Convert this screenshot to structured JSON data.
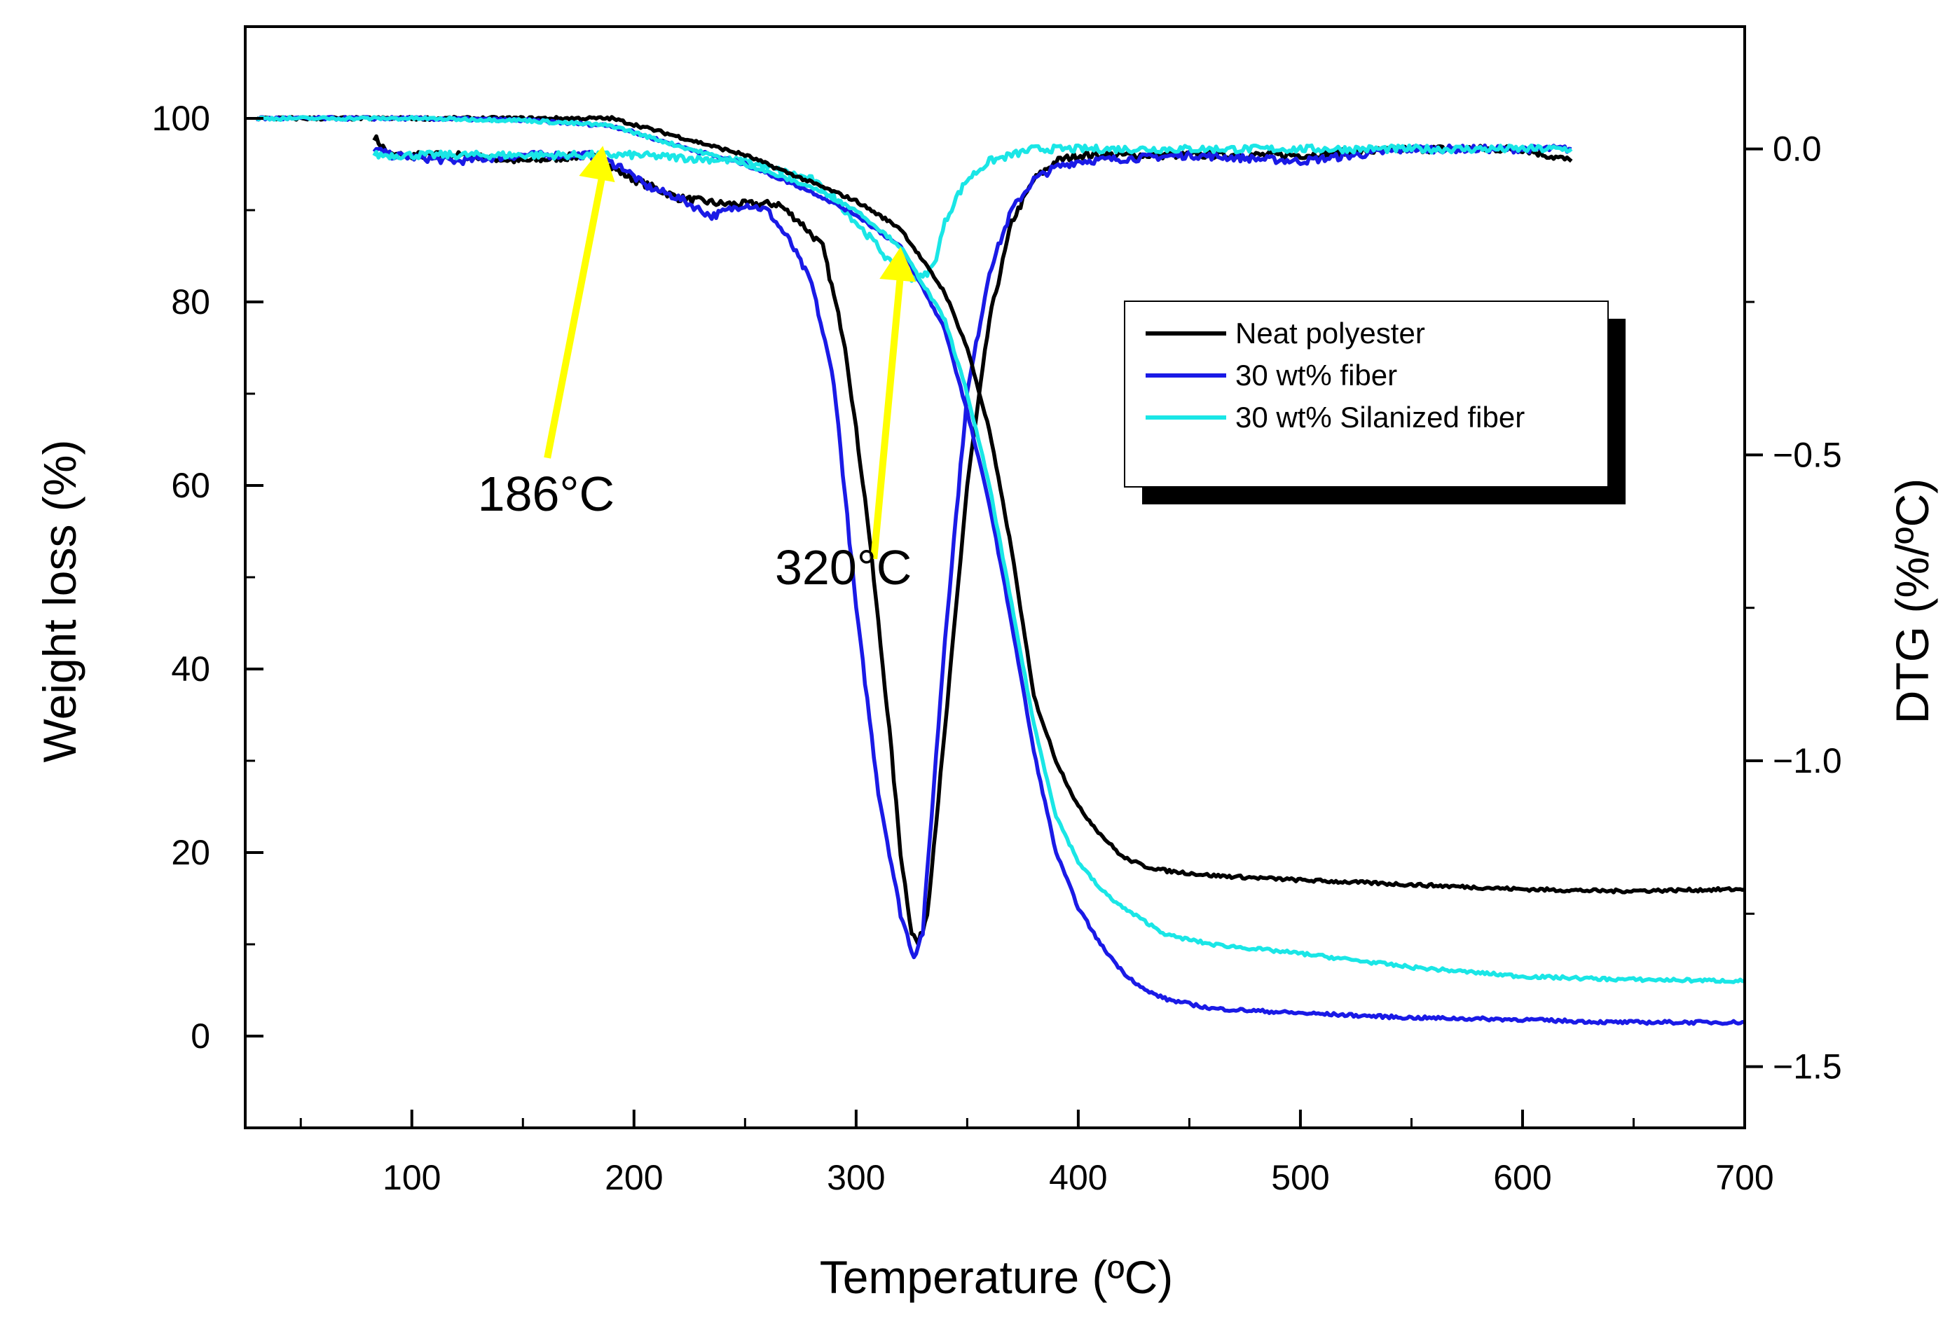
{
  "chart_data": {
    "type": "line",
    "title": "",
    "xlabel": "Temperature (ºC)",
    "ylabel": "Weight loss (%)",
    "y2label": "DTG (%/ºC)",
    "xlim": [
      25,
      700
    ],
    "ylim": [
      -10,
      110
    ],
    "y2lim": [
      -1.6,
      0.2
    ],
    "x_ticks": [
      100,
      200,
      300,
      400,
      500,
      600,
      700
    ],
    "x_tick_labels": [
      "100",
      "200",
      "300",
      "400",
      "500",
      "600",
      "700"
    ],
    "y_ticks": [
      0,
      20,
      40,
      60,
      80,
      100
    ],
    "y_tick_labels": [
      "0",
      "20",
      "40",
      "60",
      "80",
      "100"
    ],
    "y2_ticks": [
      0.0,
      -0.5,
      -1.0,
      -1.5
    ],
    "y2_tick_labels": [
      "0.0",
      "−0.5",
      "−1.0",
      "−1.5"
    ],
    "legend_position": "top-right",
    "tg_series": [
      {
        "name": "Neat polyester",
        "color": "#000000",
        "x": [
          30,
          100,
          150,
          190,
          220,
          250,
          280,
          300,
          320,
          340,
          350,
          360,
          370,
          380,
          390,
          400,
          410,
          420,
          430,
          440,
          460,
          500,
          550,
          600,
          640,
          700
        ],
        "y": [
          100,
          100,
          100,
          100,
          98,
          96,
          93,
          91,
          88,
          81,
          75,
          66,
          53,
          37,
          30,
          25,
          22,
          19.5,
          18.5,
          18,
          17.5,
          17,
          16.5,
          16,
          15.8,
          16
        ]
      },
      {
        "name": "30 wt% fiber",
        "color": "#1a1ae6",
        "x": [
          30,
          100,
          150,
          190,
          220,
          250,
          280,
          300,
          320,
          340,
          350,
          360,
          370,
          380,
          390,
          400,
          410,
          420,
          430,
          440,
          460,
          500,
          550,
          600,
          640,
          700
        ],
        "y": [
          100,
          100,
          99.8,
          99.2,
          97,
          95,
          92,
          89.5,
          86,
          77,
          68,
          58,
          45,
          31,
          20,
          14,
          10,
          7,
          5,
          4,
          3,
          2.5,
          2,
          1.8,
          1.5,
          1.5
        ]
      },
      {
        "name": "30 wt% Silanized fiber",
        "color": "#1ae6e6",
        "x": [
          30,
          100,
          150,
          190,
          220,
          250,
          280,
          300,
          320,
          340,
          350,
          360,
          370,
          380,
          390,
          400,
          410,
          420,
          430,
          440,
          460,
          500,
          550,
          600,
          640,
          700
        ],
        "y": [
          100,
          100,
          99.8,
          99.2,
          97,
          95,
          92.5,
          90,
          86,
          78,
          70,
          60,
          47,
          34,
          24,
          19,
          16,
          14,
          12.5,
          11,
          10,
          9,
          7.5,
          6.5,
          6.2,
          6
        ]
      }
    ],
    "dtg_series": [
      {
        "name": "Neat polyester",
        "color": "#000000",
        "x": [
          83,
          90,
          120,
          150,
          180,
          200,
          220,
          240,
          260,
          265,
          275,
          285,
          295,
          305,
          315,
          320,
          325,
          328,
          332,
          340,
          350,
          360,
          370,
          380,
          390,
          400,
          450,
          500,
          550,
          600,
          622
        ],
        "y": [
          0.02,
          -0.01,
          -0.01,
          -0.02,
          -0.01,
          -0.05,
          -0.08,
          -0.09,
          -0.09,
          -0.09,
          -0.12,
          -0.16,
          -0.32,
          -0.6,
          -0.95,
          -1.15,
          -1.28,
          -1.3,
          -1.25,
          -0.95,
          -0.55,
          -0.28,
          -0.12,
          -0.05,
          -0.02,
          -0.01,
          -0.01,
          -0.01,
          0,
          0,
          -0.02
        ]
      },
      {
        "name": "30 wt% fiber",
        "color": "#1a1ae6",
        "x": [
          83,
          90,
          120,
          150,
          180,
          195,
          205,
          220,
          235,
          250,
          260,
          270,
          280,
          290,
          300,
          310,
          320,
          326,
          330,
          340,
          350,
          360,
          370,
          380,
          390,
          400,
          450,
          500,
          550,
          600,
          622
        ],
        "y": [
          0.0,
          -0.01,
          -0.02,
          -0.01,
          -0.01,
          -0.03,
          -0.06,
          -0.08,
          -0.11,
          -0.09,
          -0.1,
          -0.15,
          -0.22,
          -0.38,
          -0.75,
          -1.05,
          -1.25,
          -1.32,
          -1.28,
          -0.8,
          -0.4,
          -0.2,
          -0.1,
          -0.05,
          -0.03,
          -0.02,
          -0.01,
          -0.02,
          0,
          0,
          0
        ]
      },
      {
        "name": "30 wt% Silanized fiber",
        "color": "#1ae6e6",
        "x": [
          83,
          100,
          150,
          200,
          250,
          270,
          280,
          290,
          300,
          310,
          318,
          325,
          330,
          335,
          340,
          345,
          350,
          360,
          370,
          380,
          390,
          400,
          450,
          500,
          550,
          600,
          622
        ],
        "y": [
          -0.01,
          -0.01,
          -0.01,
          -0.01,
          -0.02,
          -0.04,
          -0.05,
          -0.08,
          -0.12,
          -0.16,
          -0.2,
          -0.21,
          -0.21,
          -0.19,
          -0.12,
          -0.08,
          -0.05,
          -0.02,
          -0.01,
          0,
          0,
          0,
          0,
          0,
          0,
          0,
          0
        ]
      }
    ],
    "annotations": [
      {
        "text": "186°C",
        "x": 186,
        "y": 97,
        "label_x": 158,
        "label_y": 58
      },
      {
        "text": "320°C",
        "x": 320,
        "y": 86,
        "label_x": 295,
        "label_y": 50
      }
    ],
    "annotation_color": "#ffff00"
  }
}
